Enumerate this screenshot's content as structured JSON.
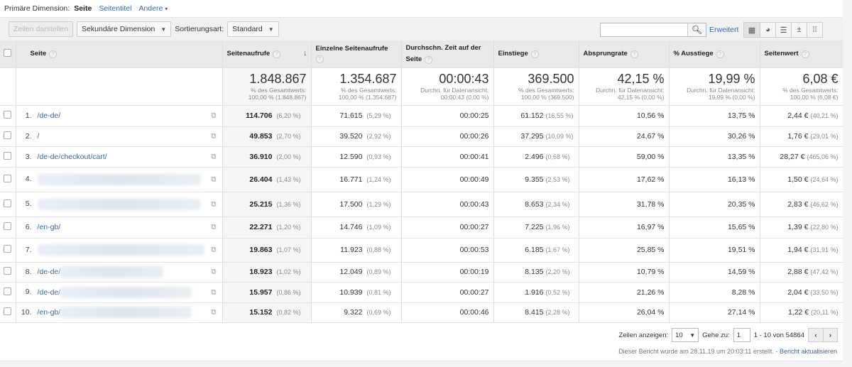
{
  "nav": {
    "label": "Primäre Dimension:",
    "active": "Seite",
    "links": [
      "Seitentitel",
      "Andere"
    ]
  },
  "toolbar": {
    "rows_btn": "Zeilen darstellen",
    "secondary": "Sekundäre Dimension",
    "sort_label": "Sortierungsart:",
    "sort_value": "Standard",
    "search_value": "",
    "advanced": "Erweitert",
    "views": [
      "table-icon",
      "pie-icon",
      "bar-icon",
      "comparison-icon",
      "pivot-icon"
    ]
  },
  "columns": [
    "Seite",
    "Seitenaufrufe",
    "Einzelne Seitenaufrufe",
    "Durchschn. Zeit auf der Seite",
    "Einstiege",
    "Absprungrate",
    "% Ausstiege",
    "Seitenwert"
  ],
  "totals": [
    {
      "value": "1.848.867",
      "l1": "% des Gesamtwerts:",
      "l2": "100,00 % (1.848.867)"
    },
    {
      "value": "1.354.687",
      "l1": "% des Gesamtwerts:",
      "l2": "100,00 % (1.354.687)"
    },
    {
      "value": "00:00:43",
      "l1": "Durchn. für Datenansicht:",
      "l2": "00:00:43 (0,00 %)"
    },
    {
      "value": "369.500",
      "l1": "% des Gesamtwerts:",
      "l2": "100,00 % (369.500)"
    },
    {
      "value": "42,15 %",
      "l1": "Durchn. für Datenansicht:",
      "l2": "42,15 % (0,00 %)"
    },
    {
      "value": "19,99 %",
      "l1": "Durchn. für Datenansicht:",
      "l2": "19,99 % (0,00 %)"
    },
    {
      "value": "6,08 €",
      "l1": "% des Gesamtwerts:",
      "l2": "100,00 % (6,08 €)"
    }
  ],
  "rows": [
    {
      "n": "1.",
      "page": "/de-de/",
      "pv": "114.706",
      "pvp": "(6,20 %)",
      "upv": "71.615",
      "upvp": "(5,29 %)",
      "time": "00:00:25",
      "ent": "61.152",
      "entp": "(16,55 %)",
      "bounce": "10,56 %",
      "exit": "13,75 %",
      "val": "2,44 €",
      "valp": "(40,21 %)"
    },
    {
      "n": "2.",
      "page": "/",
      "pv": "49.853",
      "pvp": "(2,70 %)",
      "upv": "39.520",
      "upvp": "(2,92 %)",
      "time": "00:00:26",
      "ent": "37.295",
      "entp": "(10,09 %)",
      "bounce": "24,67 %",
      "exit": "30,26 %",
      "val": "1,76 €",
      "valp": "(29,01 %)"
    },
    {
      "n": "3.",
      "page": "/de-de/checkout/cart/",
      "pv": "36.910",
      "pvp": "(2,00 %)",
      "upv": "12.590",
      "upvp": "(0,93 %)",
      "time": "00:00:41",
      "ent": "2.496",
      "entp": "(0,68 %)",
      "bounce": "59,00 %",
      "exit": "13,35 %",
      "val": "28,27 €",
      "valp": "(465,06 %)"
    },
    {
      "n": "4.",
      "page": "",
      "pv": "26.404",
      "pvp": "(1,43 %)",
      "upv": "16.771",
      "upvp": "(1,24 %)",
      "time": "00:00:49",
      "ent": "9.355",
      "entp": "(2,53 %)",
      "bounce": "17,62 %",
      "exit": "16,13 %",
      "val": "1,50 €",
      "valp": "(24,64 %)"
    },
    {
      "n": "5.",
      "page": "",
      "pv": "25.215",
      "pvp": "(1,36 %)",
      "upv": "17.500",
      "upvp": "(1,29 %)",
      "time": "00:00:43",
      "ent": "8.653",
      "entp": "(2,34 %)",
      "bounce": "31,78 %",
      "exit": "20,35 %",
      "val": "2,83 €",
      "valp": "(46,62 %)"
    },
    {
      "n": "6.",
      "page": "/en-gb/",
      "pv": "22.271",
      "pvp": "(1,20 %)",
      "upv": "14.746",
      "upvp": "(1,09 %)",
      "time": "00:00:27",
      "ent": "7.225",
      "entp": "(1,96 %)",
      "bounce": "16,97 %",
      "exit": "15,65 %",
      "val": "1,39 €",
      "valp": "(22,80 %)"
    },
    {
      "n": "7.",
      "page": "",
      "pv": "19.863",
      "pvp": "(1,07 %)",
      "upv": "11.923",
      "upvp": "(0,88 %)",
      "time": "00:00:53",
      "ent": "6.185",
      "entp": "(1,67 %)",
      "bounce": "25,85 %",
      "exit": "19,51 %",
      "val": "1,94 €",
      "valp": "(31,91 %)"
    },
    {
      "n": "8.",
      "page": "/de-de/",
      "pv": "18.923",
      "pvp": "(1,02 %)",
      "upv": "12.049",
      "upvp": "(0,89 %)",
      "time": "00:00:19",
      "ent": "8.135",
      "entp": "(2,20 %)",
      "bounce": "10,79 %",
      "exit": "14,59 %",
      "val": "2,88 €",
      "valp": "(47,42 %)"
    },
    {
      "n": "9.",
      "page": "/de-de/",
      "pv": "15.957",
      "pvp": "(0,86 %)",
      "upv": "10.939",
      "upvp": "(0,81 %)",
      "time": "00:00:27",
      "ent": "1.916",
      "entp": "(0,52 %)",
      "bounce": "21,26 %",
      "exit": "8,28 %",
      "val": "2,04 €",
      "valp": "(33,50 %)"
    },
    {
      "n": "10.",
      "page": "/en-gb/",
      "pv": "15.152",
      "pvp": "(0,82 %)",
      "upv": "9.322",
      "upvp": "(0,69 %)",
      "time": "00:00:46",
      "ent": "8.415",
      "entp": "(2,28 %)",
      "bounce": "26,04 %",
      "exit": "27,14 %",
      "val": "1,22 €",
      "valp": "(20,11 %)"
    }
  ],
  "footer": {
    "rows_label": "Zeilen anzeigen:",
    "rows_value": "10",
    "goto_label": "Gehe zu:",
    "goto_value": "1",
    "range": "1 - 10 von 54864",
    "note": "Dieser Bericht wurde am 28.11.19 um 20:03:11 erstellt. -",
    "refresh": "Bericht aktualisieren"
  }
}
